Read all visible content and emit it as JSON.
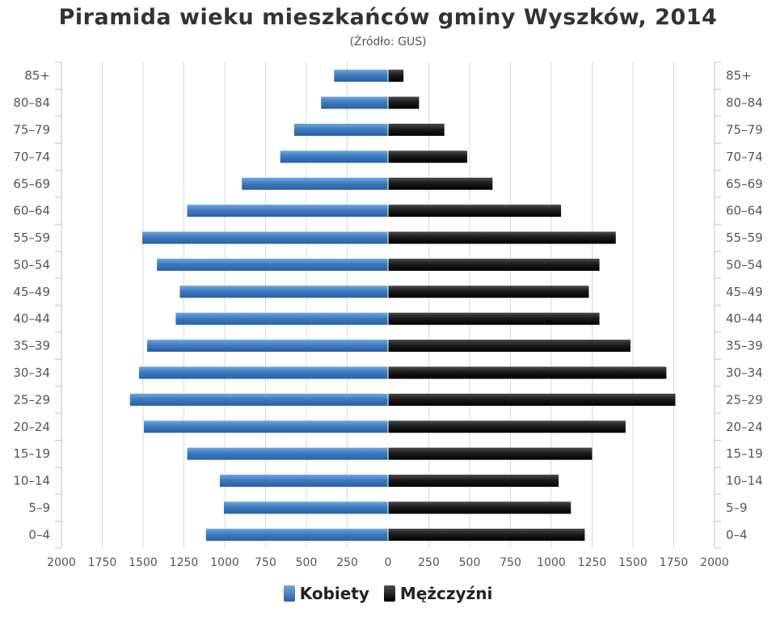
{
  "title": "Piramida wieku mieszkańców gminy Wyszków, 2014",
  "subtitle": "(Źródło: GUS)",
  "colors": {
    "female": "#3c78bd",
    "male": "#1a1a1a",
    "grid": "#d8d8d8"
  },
  "chart_data": {
    "type": "bar",
    "orientation": "horizontal-pyramid",
    "categories": [
      "85+",
      "80–84",
      "75–79",
      "70–74",
      "65–69",
      "60–64",
      "55–59",
      "50–54",
      "45–49",
      "40–44",
      "35–39",
      "30–34",
      "25–29",
      "20–24",
      "15–19",
      "10–14",
      "5–9",
      "0–4"
    ],
    "series": [
      {
        "name": "Kobiety",
        "values": [
          330,
          410,
          575,
          660,
          895,
          1230,
          1505,
          1415,
          1275,
          1300,
          1475,
          1525,
          1580,
          1495,
          1230,
          1030,
          1005,
          1115
        ]
      },
      {
        "name": "Mężczyźni",
        "values": [
          95,
          190,
          345,
          485,
          640,
          1060,
          1395,
          1295,
          1230,
          1295,
          1485,
          1705,
          1760,
          1455,
          1250,
          1045,
          1120,
          1205
        ]
      }
    ],
    "xlim": [
      -2000,
      2000
    ],
    "x_ticks": [
      "2000",
      "1750",
      "1500",
      "1250",
      "1000",
      "750",
      "500",
      "250",
      "0",
      "250",
      "500",
      "750",
      "1000",
      "1250",
      "1500",
      "1750",
      "2000"
    ],
    "grid": true,
    "legend": "bottom-center"
  }
}
